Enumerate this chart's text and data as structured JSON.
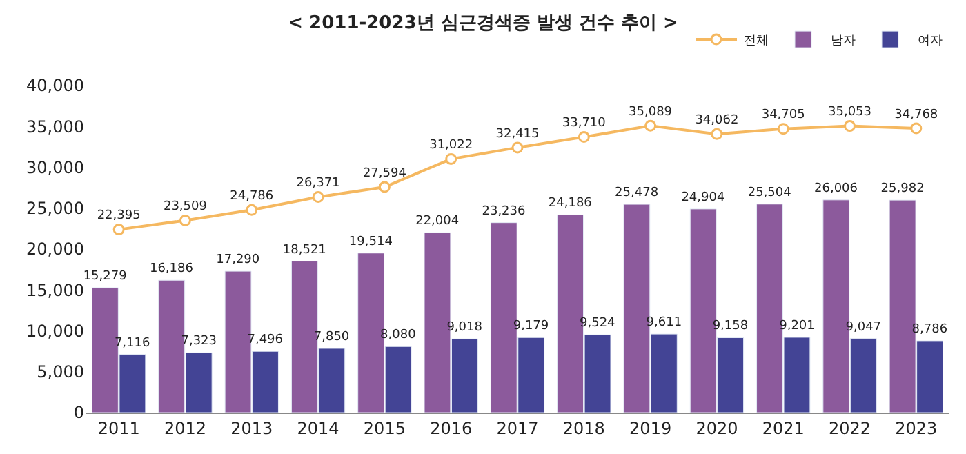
{
  "chart_data": {
    "type": "bar",
    "title": "< 2011-2023년 심근경색증 발생 건수 추이 >",
    "categories": [
      "2011",
      "2012",
      "2013",
      "2014",
      "2015",
      "2016",
      "2017",
      "2018",
      "2019",
      "2020",
      "2021",
      "2022",
      "2023"
    ],
    "series": [
      {
        "name": "전체",
        "type": "line",
        "color": "#f5b860",
        "marker": "circle",
        "values": [
          22395,
          23509,
          24786,
          26371,
          27594,
          31022,
          32415,
          33710,
          35089,
          34062,
          34705,
          35053,
          34768
        ],
        "value_labels": [
          "22,395",
          "23,509",
          "24,786",
          "26,371",
          "27,594",
          "31,022",
          "32,415",
          "33,710",
          "35,089",
          "34,062",
          "34,705",
          "35,053",
          "34,768"
        ]
      },
      {
        "name": "남자",
        "color": "#8c5a9c",
        "values": [
          15279,
          16186,
          17290,
          18521,
          19514,
          22004,
          23236,
          24186,
          25478,
          24904,
          25504,
          26006,
          25982
        ],
        "value_labels": [
          "15,279",
          "16,186",
          "17,290",
          "18,521",
          "19,514",
          "22,004",
          "23,236",
          "24,186",
          "25,478",
          "24,904",
          "25,504",
          "26,006",
          "25,982"
        ]
      },
      {
        "name": "여자",
        "color": "#434495",
        "values": [
          7116,
          7323,
          7496,
          7850,
          8080,
          9018,
          9179,
          9524,
          9611,
          9158,
          9201,
          9047,
          8786
        ],
        "value_labels": [
          "7,116",
          "7,323",
          "7,496",
          "7,850",
          "8,080",
          "9,018",
          "9,179",
          "9,524",
          "9,611",
          "9,158",
          "9,201",
          "9,047",
          "8,786"
        ]
      }
    ],
    "ylim": [
      0,
      40000
    ],
    "yticks": [
      0,
      {
        "value": 5000,
        "label": "5,000"
      },
      {
        "value": 10000,
        "label": "10,000"
      },
      {
        "value": 15000,
        "label": "15,000"
      },
      {
        "value": 20000,
        "label": "20,000"
      },
      {
        "value": 25000,
        "label": "25,000"
      },
      {
        "value": 30000,
        "label": "30,000"
      },
      {
        "value": 35000,
        "label": "35,000"
      },
      {
        "value": 40000,
        "label": "40,000"
      }
    ],
    "legend": "top right"
  }
}
